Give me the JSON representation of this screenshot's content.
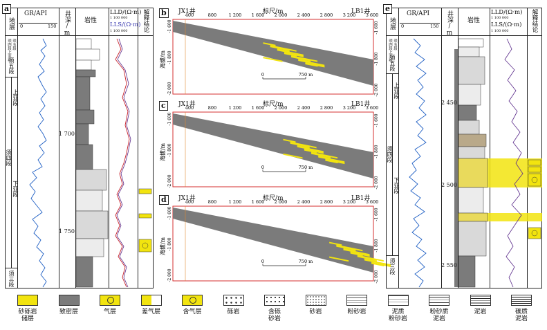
{
  "panels": {
    "a": {
      "letter": "a",
      "headers": {
        "strata": "地层",
        "gr": "GR/API",
        "gr_min": "0",
        "gr_max": "150",
        "depth": "井深/m",
        "lith": "岩性",
        "lld": "LLD/(Ω·m)",
        "lld_scale": "1          100 000",
        "lls": "LLS/(Ω·m)",
        "lls_scale": "1          100 000",
        "interp": "解释结论"
      },
      "strata": {
        "xu_wu": "须五段",
        "shang": "上亚段",
        "xu_si": "须四段",
        "xia": "下亚段",
        "xu_san": "须三段",
        "small1": "须四段上亚段",
        "small2": "须五段"
      },
      "depths": [
        "1 700",
        "1 750"
      ]
    },
    "e": {
      "letter": "e",
      "headers": {
        "strata": "地层",
        "gr": "GR/API",
        "gr_min": "0",
        "gr_max": "150",
        "depth": "井深/m",
        "lith": "岩性",
        "lld": "LLD/(Ω·m)",
        "lld_scale": "1          100 000",
        "lls": "LLS/(Ω·m)",
        "lls_scale": "1          100 000",
        "interp": "解释结论"
      },
      "strata": {
        "xu_wu": "须五段",
        "shang": "上亚段",
        "xu_si": "须四段",
        "xia": "下亚段",
        "xu_san": "须三段",
        "small1": "须四段上亚段",
        "small2": "须五段"
      },
      "depths": [
        "2 450",
        "2 500",
        "2 550"
      ]
    },
    "sections": [
      {
        "letter": "b",
        "left_well": "JX1井",
        "right_well": "LB1井",
        "scale_title": "标尺/m",
        "scale_bar": "750 m",
        "scale_zero": "0"
      },
      {
        "letter": "c",
        "left_well": "JX1井",
        "right_well": "LB1井",
        "scale_title": "标尺/m",
        "scale_bar": "750 m",
        "scale_zero": "0"
      },
      {
        "letter": "d",
        "left_well": "JX1井",
        "right_well": "LB1井",
        "scale_title": "标尺/m",
        "scale_bar": "750 m",
        "scale_zero": "0"
      }
    ],
    "section_axis": {
      "x_ticks": [
        "400",
        "800",
        "1 200",
        "1 600",
        "2 000",
        "2 400",
        "2 800",
        "3 200",
        "3 600"
      ],
      "y_label": "海拔/m",
      "y_ticks_left": [
        "-1 600",
        "-1 800",
        "-2 000"
      ],
      "y_ticks_right": [
        "-1 600",
        "-1 800",
        "-2 000"
      ]
    }
  },
  "legend": [
    {
      "label": "砂砾岩储层",
      "line1": "砂砾岩",
      "line2": "储层",
      "color": "#f2e40f"
    },
    {
      "label": "致密层",
      "line1": "致密层",
      "line2": "",
      "color": "#7b7b7b"
    },
    {
      "label": "气层",
      "line1": "气层",
      "line2": "",
      "color": "#f2e40f"
    },
    {
      "label": "差气层",
      "line1": "差气层",
      "line2": "",
      "color": "#f2e40f"
    },
    {
      "label": "含气层",
      "line1": "含气层",
      "line2": "",
      "color": "#f2e40f"
    },
    {
      "label": "砾岩",
      "line1": "砾岩",
      "line2": ""
    },
    {
      "label": "含砾砂岩",
      "line1": "含砾",
      "line2": "砂岩"
    },
    {
      "label": "砂岩",
      "line1": "砂岩",
      "line2": ""
    },
    {
      "label": "粉砂岩",
      "line1": "粉砂岩",
      "line2": ""
    },
    {
      "label": "泥质粉砂岩",
      "line1": "泥质",
      "line2": "粉砂岩"
    },
    {
      "label": "粉砂质泥岩",
      "line1": "粉砂质",
      "line2": "泥岩"
    },
    {
      "label": "泥岩",
      "line1": "泥岩",
      "line2": ""
    },
    {
      "label": "碳质泥岩",
      "line1": "碳质",
      "line2": "泥岩"
    }
  ],
  "colors": {
    "reservoir": "#f2e40f",
    "tight": "#7b7b7b",
    "gr_curve": "#1f5fc4",
    "lld_curve": "#c8232c",
    "lls_curve": "#5a2a8a",
    "section_border": "#d62f2f"
  }
}
